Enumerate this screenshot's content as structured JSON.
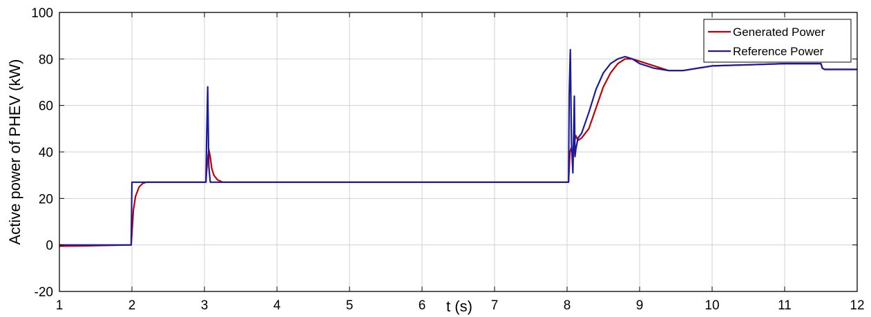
{
  "chart_data": {
    "type": "line",
    "title": "",
    "xlabel": "t (s)",
    "ylabel": "Active power of PHEV (kW)",
    "xlim": [
      1,
      12
    ],
    "ylim": [
      -20,
      100
    ],
    "xticks": [
      1,
      2,
      3,
      4,
      5,
      6,
      7,
      8,
      9,
      10,
      11,
      12
    ],
    "yticks": [
      -20,
      0,
      20,
      40,
      60,
      80,
      100
    ],
    "grid": true,
    "legend_position": "top-right",
    "series": [
      {
        "name": "Generated Power",
        "color": "#c00000",
        "x": [
          1,
          1.5,
          1.99,
          2.0,
          2.02,
          2.05,
          2.1,
          2.15,
          2.2,
          3.02,
          3.04,
          3.06,
          3.08,
          3.1,
          3.13,
          3.18,
          3.25,
          8.02,
          8.04,
          8.06,
          8.08,
          8.1,
          8.12,
          8.15,
          8.2,
          8.3,
          8.4,
          8.5,
          8.6,
          8.7,
          8.8,
          8.9,
          9.0,
          9.2,
          9.4,
          9.6,
          10.0,
          10.5,
          11.0,
          11.5,
          11.52,
          11.55,
          12
        ],
        "y": [
          -0.5,
          -0.3,
          0,
          5,
          15,
          21,
          25,
          26.5,
          27,
          27,
          36,
          41,
          38,
          33,
          30,
          28,
          27,
          27,
          40,
          42,
          36,
          44,
          47,
          45,
          46,
          50,
          59,
          68,
          74,
          78,
          80,
          80,
          79,
          77,
          75,
          75,
          77,
          77.5,
          78,
          78,
          76,
          75.5,
          75.5
        ]
      },
      {
        "name": "Reference Power",
        "color": "#1a1aa0",
        "x": [
          1,
          1.5,
          1.99,
          2.0,
          2.01,
          3.02,
          3.03,
          3.045,
          3.06,
          3.08,
          3.1,
          8.02,
          8.03,
          8.045,
          8.06,
          8.08,
          8.1,
          8.11,
          8.12,
          8.15,
          8.2,
          8.3,
          8.4,
          8.5,
          8.6,
          8.7,
          8.8,
          8.9,
          9.0,
          9.2,
          9.4,
          9.6,
          10.0,
          10.5,
          11.0,
          11.5,
          11.52,
          11.55,
          12
        ],
        "y": [
          0,
          0,
          0,
          27,
          27,
          27,
          45,
          68,
          34,
          27,
          27,
          27,
          65,
          84,
          44,
          31,
          64,
          38,
          41,
          46,
          48,
          57,
          67,
          74,
          78,
          80,
          81,
          80,
          78,
          76,
          75,
          75,
          77,
          77.5,
          78,
          78,
          76,
          75.5,
          75.5
        ]
      }
    ]
  }
}
